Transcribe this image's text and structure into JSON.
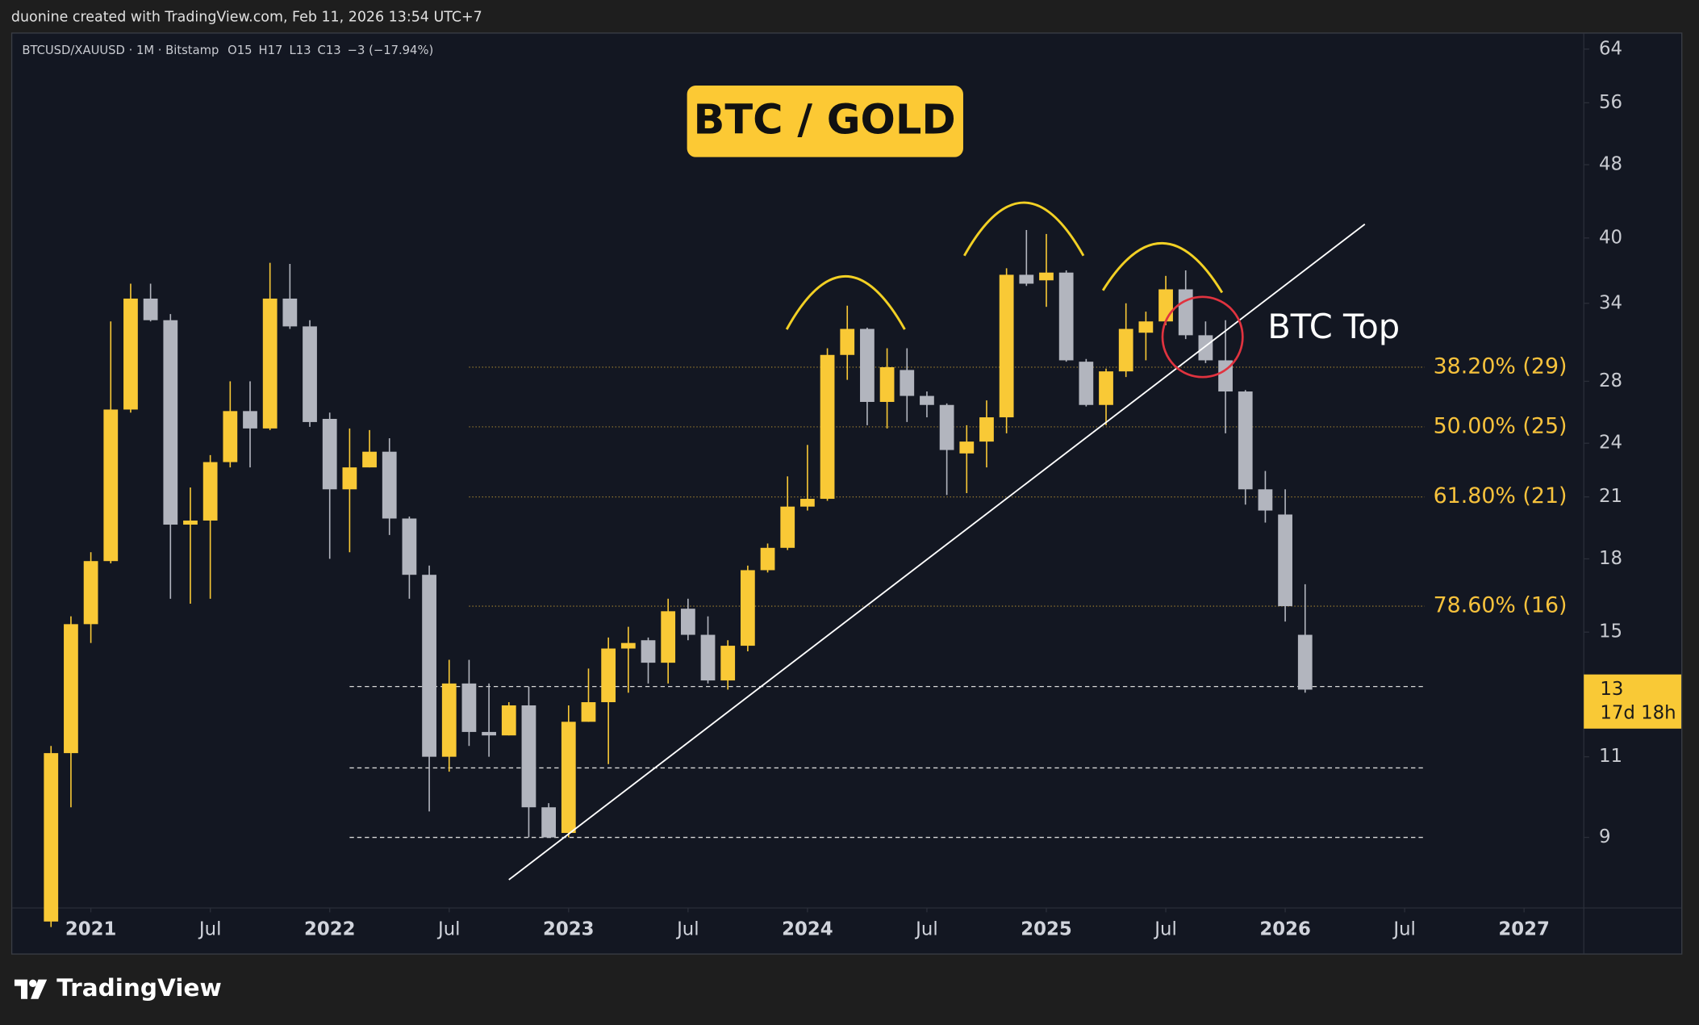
{
  "header": {
    "attribution": "duonine created with TradingView.com, Feb 11, 2026 13:54 UTC+7"
  },
  "chart_data": {
    "type": "candlestick",
    "title": "BTC / GOLD",
    "symbol": "BTCUSD/XAUUSD · 1M · Bitstamp",
    "ohlc_legend": [
      "O15",
      "H17",
      "L13",
      "C13",
      "−3 (−17.94%)"
    ],
    "x": [
      "2020-11",
      "2020-12",
      "2021-01",
      "2021-02",
      "2021-03",
      "2021-04",
      "2021-05",
      "2021-06",
      "2021-07",
      "2021-08",
      "2021-09",
      "2021-10",
      "2021-11",
      "2021-12",
      "2022-01",
      "2022-02",
      "2022-03",
      "2022-04",
      "2022-05",
      "2022-06",
      "2022-07",
      "2022-08",
      "2022-09",
      "2022-10",
      "2022-11",
      "2022-12",
      "2023-01",
      "2023-02",
      "2023-03",
      "2023-04",
      "2023-05",
      "2023-06",
      "2023-07",
      "2023-08",
      "2023-09",
      "2023-10",
      "2023-11",
      "2023-12",
      "2024-01",
      "2024-02",
      "2024-03",
      "2024-04",
      "2024-05",
      "2024-06",
      "2024-07",
      "2024-08",
      "2024-09",
      "2024-10",
      "2024-11",
      "2024-12",
      "2025-01",
      "2025-02",
      "2025-03",
      "2025-04",
      "2025-05",
      "2025-06",
      "2025-07",
      "2025-08",
      "2025-09",
      "2025-10",
      "2025-11",
      "2025-12",
      "2026-01",
      "2026-02"
    ],
    "open": [
      7.3,
      11.1,
      15.3,
      17.9,
      26.1,
      34.4,
      32.6,
      19.6,
      19.8,
      22.9,
      26.0,
      24.9,
      34.4,
      32.1,
      25.5,
      21.4,
      22.6,
      23.5,
      19.9,
      17.3,
      11.0,
      13.2,
      11.7,
      11.6,
      12.5,
      9.7,
      9.1,
      12.0,
      12.6,
      14.4,
      14.7,
      13.9,
      15.9,
      14.9,
      13.3,
      14.5,
      17.5,
      18.5,
      20.5,
      20.9,
      29.9,
      31.9,
      26.6,
      28.8,
      27.0,
      26.4,
      23.4,
      24.1,
      25.6,
      36.5,
      36.0,
      36.7,
      29.4,
      26.4,
      28.7,
      31.6,
      32.5,
      35.2,
      31.4,
      29.5,
      27.3,
      21.4,
      20.1,
      14.9
    ],
    "high": [
      11.3,
      15.6,
      18.3,
      32.5,
      35.7,
      35.7,
      33.1,
      21.5,
      23.3,
      28.0,
      28.0,
      37.6,
      37.5,
      32.6,
      25.9,
      24.9,
      24.8,
      24.3,
      20.0,
      17.7,
      14.0,
      14.0,
      13.2,
      12.6,
      13.1,
      9.8,
      12.5,
      13.7,
      14.8,
      15.2,
      14.8,
      16.3,
      16.3,
      15.6,
      14.7,
      17.7,
      18.7,
      22.1,
      23.9,
      30.4,
      33.8,
      32.0,
      30.4,
      30.4,
      27.3,
      26.5,
      25.1,
      26.7,
      37.1,
      40.8,
      40.4,
      36.9,
      29.6,
      28.9,
      34.0,
      33.3,
      36.4,
      36.9,
      32.5,
      32.6,
      27.4,
      22.4,
      21.4,
      16.9
    ],
    "low": [
      7.2,
      9.7,
      14.6,
      17.8,
      25.9,
      32.5,
      16.3,
      16.1,
      16.3,
      22.6,
      22.6,
      24.8,
      31.9,
      25.0,
      18.0,
      18.3,
      22.6,
      19.1,
      16.3,
      9.6,
      10.6,
      11.3,
      11.0,
      11.6,
      9.0,
      9.0,
      9.0,
      12.0,
      10.8,
      12.9,
      13.2,
      13.2,
      14.7,
      13.2,
      13.0,
      14.3,
      17.4,
      18.4,
      20.3,
      20.8,
      28.1,
      25.1,
      24.9,
      25.3,
      25.6,
      21.1,
      21.2,
      22.6,
      24.6,
      35.5,
      33.7,
      29.4,
      26.3,
      25.1,
      28.3,
      29.5,
      32.2,
      31.1,
      29.3,
      24.6,
      20.6,
      19.7,
      15.4,
      12.9
    ],
    "close": [
      11.1,
      15.3,
      17.9,
      26.1,
      34.4,
      32.6,
      19.6,
      19.8,
      22.9,
      26.0,
      24.9,
      34.4,
      32.1,
      25.3,
      21.4,
      22.6,
      23.5,
      19.9,
      17.3,
      11.0,
      13.2,
      11.7,
      11.6,
      12.5,
      9.7,
      9.0,
      12.0,
      12.6,
      14.4,
      14.6,
      13.9,
      15.8,
      14.9,
      13.3,
      14.5,
      17.5,
      18.5,
      20.5,
      20.9,
      29.9,
      31.9,
      26.6,
      29.0,
      27.0,
      26.4,
      23.6,
      24.1,
      25.6,
      36.5,
      35.7,
      36.7,
      29.5,
      26.4,
      28.7,
      31.9,
      32.5,
      35.2,
      31.4,
      29.5,
      27.3,
      21.4,
      20.3,
      16.0,
      13
    ],
    "up_color": "#f9c936",
    "down_color": "#b2b5be",
    "log_scale": true,
    "grid": false,
    "xlim": [
      "2020-09",
      "2027-04"
    ],
    "xticks": [
      {
        "value": "2021-01",
        "label": "2021"
      },
      {
        "value": "2021-07",
        "label": "Jul"
      },
      {
        "value": "2022-01",
        "label": "2022"
      },
      {
        "value": "2022-07",
        "label": "Jul"
      },
      {
        "value": "2023-01",
        "label": "2023"
      },
      {
        "value": "2023-07",
        "label": "Jul"
      },
      {
        "value": "2024-01",
        "label": "2024"
      },
      {
        "value": "2024-07",
        "label": "Jul"
      },
      {
        "value": "2025-01",
        "label": "2025"
      },
      {
        "value": "2025-07",
        "label": "Jul"
      },
      {
        "value": "2026-01",
        "label": "2026"
      },
      {
        "value": "2026-07",
        "label": "Jul"
      },
      {
        "value": "2027-01",
        "label": "2027"
      }
    ],
    "ylim": [
      7.55,
      66.7
    ],
    "yticks": [
      9,
      11,
      15,
      18,
      21,
      24,
      28,
      34,
      40,
      48,
      56,
      64
    ],
    "countdown": "17d 18h",
    "fib_levels": [
      {
        "value": 29,
        "label": "38.20% (29)"
      },
      {
        "value": 25,
        "label": "50.00% (25)"
      },
      {
        "value": 21,
        "label": "61.80% (21)"
      },
      {
        "value": 16,
        "label": "78.60% (16)"
      }
    ],
    "fib_from": "2022-08",
    "levels": [
      13.1,
      10.7,
      9.0
    ],
    "levels_from": "2022-02",
    "levels_to": "2026-08",
    "fib_color": "#f7c23c",
    "trendline": {
      "from": {
        "x": "2022-10",
        "y": 8.1
      },
      "to": {
        "x": "2026-05",
        "y": 41.4
      },
      "color": "#ffffff"
    },
    "annotation": "BTC Top"
  },
  "footer": {
    "brand": "TradingView"
  }
}
